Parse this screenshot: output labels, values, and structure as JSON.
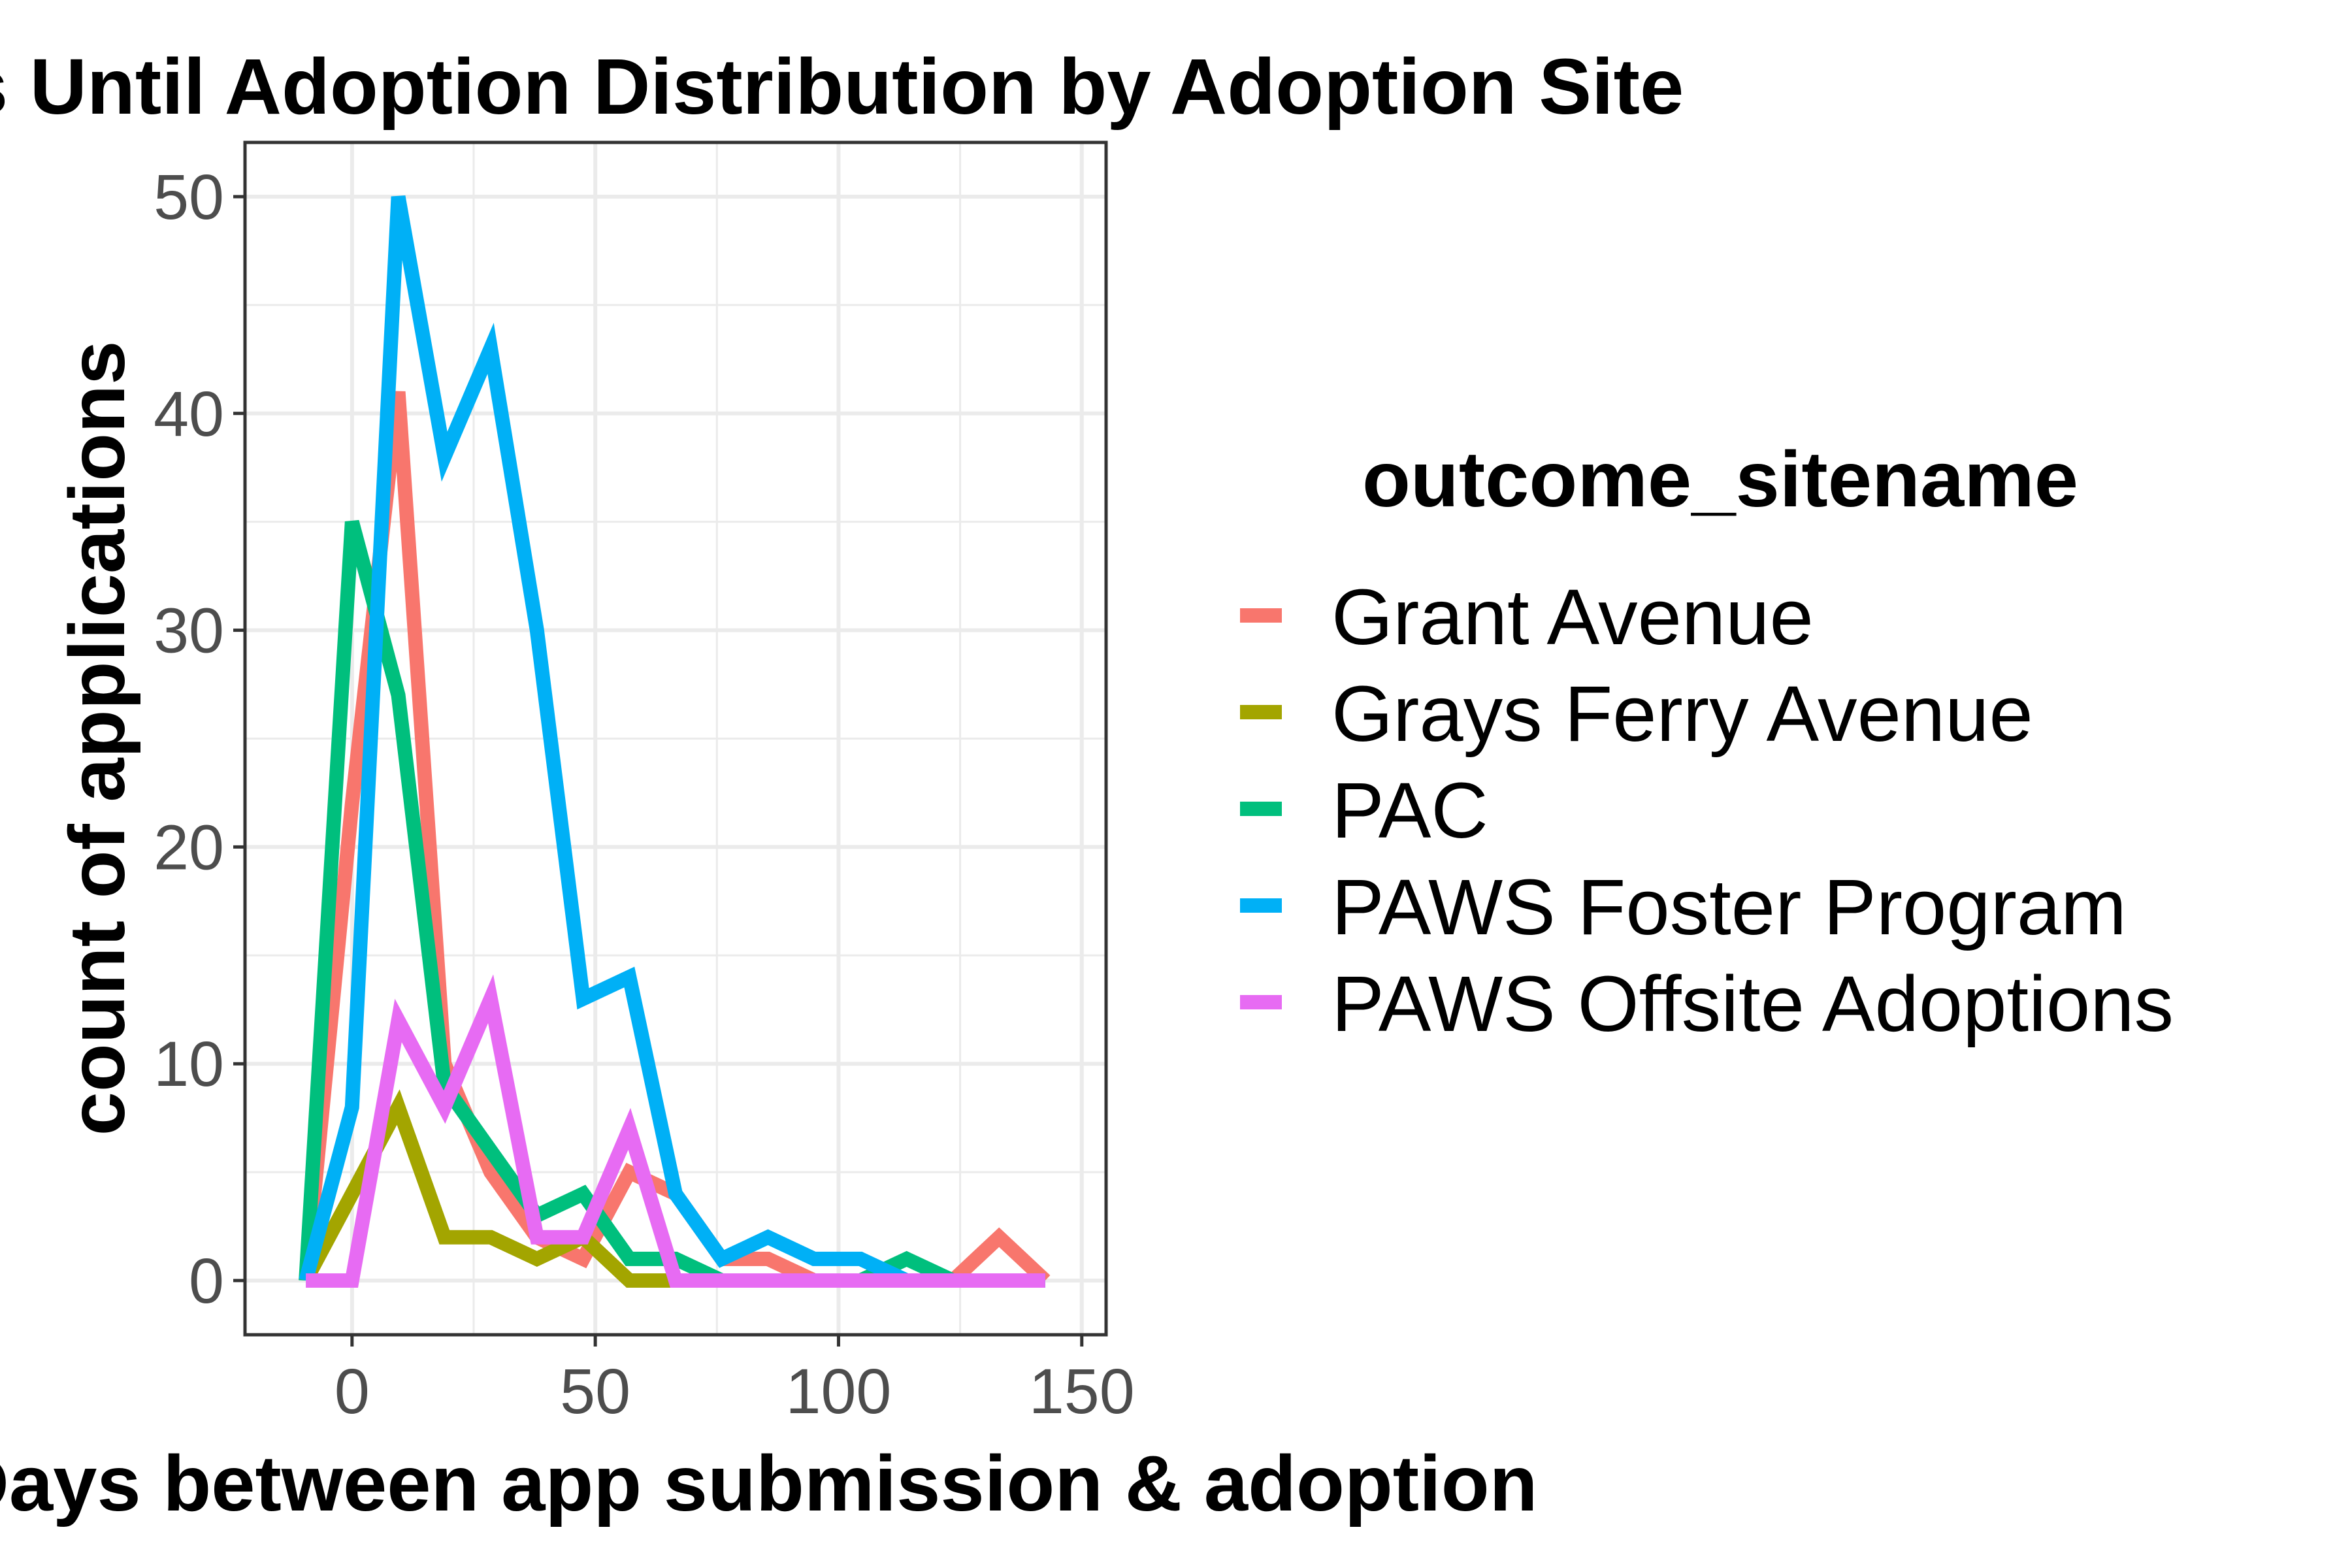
{
  "chart_data": {
    "type": "line",
    "title": "Days Until Adoption Distribution by Adoption Site",
    "xlabel": "Days between app submission & adoption",
    "ylabel": "count of applications",
    "x_ticks": [
      "0",
      "50",
      "100",
      "150"
    ],
    "y_ticks": [
      "0",
      "10",
      "20",
      "30",
      "40",
      "50"
    ],
    "xlim": [
      -22,
      155
    ],
    "ylim": [
      -2.5,
      52.5
    ],
    "grid": true,
    "legend_title": "outcome_sitename",
    "legend_position": "right",
    "series": [
      {
        "name": "Grant Avenue",
        "color": "#F8766D",
        "points": [
          [
            -9.5,
            0
          ],
          [
            0,
            22
          ],
          [
            9.5,
            41
          ],
          [
            19,
            10
          ],
          [
            28.5,
            5
          ],
          [
            38,
            2
          ],
          [
            47.5,
            1
          ],
          [
            57,
            5
          ],
          [
            66.5,
            4
          ],
          [
            76,
            1
          ],
          [
            85.5,
            1
          ],
          [
            95,
            0
          ],
          [
            104.5,
            0
          ],
          [
            114,
            0
          ],
          [
            123.5,
            0
          ],
          [
            133,
            2
          ],
          [
            142.5,
            0
          ]
        ]
      },
      {
        "name": "Grays Ferry Avenue",
        "color": "#A3A500",
        "points": [
          [
            -9.5,
            0
          ],
          [
            0,
            4
          ],
          [
            9.5,
            8
          ],
          [
            19,
            2
          ],
          [
            28.5,
            2
          ],
          [
            38,
            1
          ],
          [
            47.5,
            2
          ],
          [
            57,
            0
          ],
          [
            66.5,
            0
          ],
          [
            76,
            0
          ],
          [
            85.5,
            0
          ],
          [
            95,
            0
          ],
          [
            104.5,
            0
          ],
          [
            114,
            0
          ],
          [
            123.5,
            0
          ],
          [
            133,
            0
          ],
          [
            142.5,
            0
          ]
        ]
      },
      {
        "name": "PAC",
        "color": "#00BF7D",
        "points": [
          [
            -9.5,
            0
          ],
          [
            0,
            35
          ],
          [
            9.5,
            27
          ],
          [
            19,
            9
          ],
          [
            28.5,
            6
          ],
          [
            38,
            3
          ],
          [
            47.5,
            4
          ],
          [
            57,
            1
          ],
          [
            66.5,
            1
          ],
          [
            76,
            0
          ],
          [
            85.5,
            0
          ],
          [
            95,
            0
          ],
          [
            104.5,
            0
          ],
          [
            114,
            1
          ],
          [
            123.5,
            0
          ],
          [
            133,
            0
          ],
          [
            142.5,
            0
          ]
        ]
      },
      {
        "name": "PAWS Foster Program",
        "color": "#00B0F6",
        "points": [
          [
            -9.5,
            0
          ],
          [
            0,
            8
          ],
          [
            9.5,
            50
          ],
          [
            19,
            38
          ],
          [
            28.5,
            43
          ],
          [
            38,
            30
          ],
          [
            47.5,
            13
          ],
          [
            57,
            14
          ],
          [
            66.5,
            4
          ],
          [
            76,
            1
          ],
          [
            85.5,
            2
          ],
          [
            95,
            1
          ],
          [
            104.5,
            1
          ],
          [
            114,
            0
          ],
          [
            123.5,
            0
          ],
          [
            133,
            0
          ],
          [
            142.5,
            0
          ]
        ]
      },
      {
        "name": "PAWS Offsite Adoptions",
        "color": "#E76BF3",
        "points": [
          [
            -9.5,
            0
          ],
          [
            0,
            0
          ],
          [
            9.5,
            12
          ],
          [
            19,
            8
          ],
          [
            28.5,
            13
          ],
          [
            38,
            2
          ],
          [
            47.5,
            2
          ],
          [
            57,
            7
          ],
          [
            66.5,
            0
          ],
          [
            76,
            0
          ],
          [
            85.5,
            0
          ],
          [
            95,
            0
          ],
          [
            104.5,
            0
          ],
          [
            114,
            0
          ],
          [
            123.5,
            0
          ],
          [
            133,
            0
          ],
          [
            142.5,
            0
          ]
        ]
      }
    ]
  }
}
